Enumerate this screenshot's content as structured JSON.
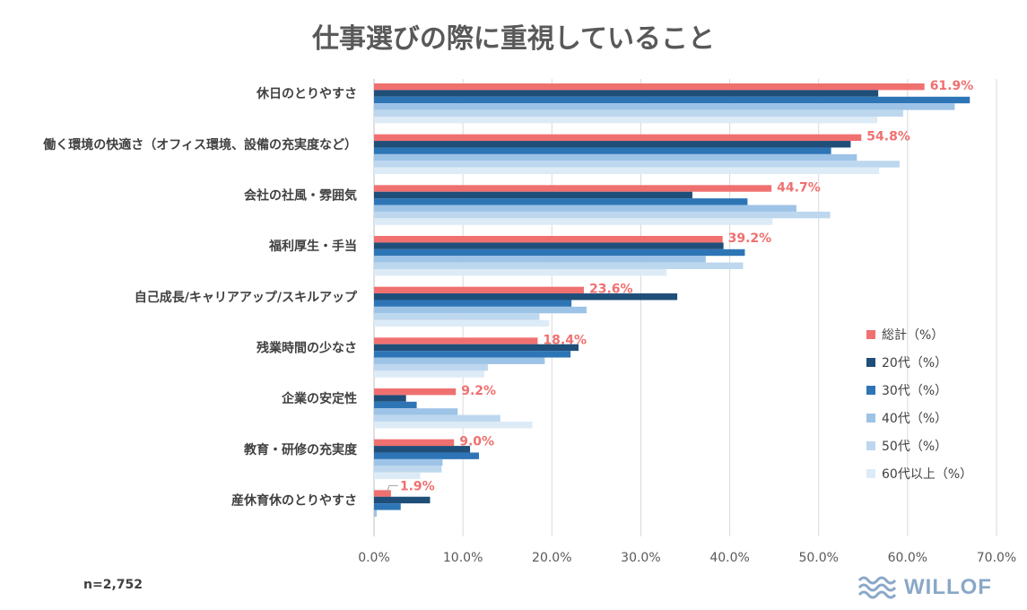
{
  "chart_data": {
    "type": "bar",
    "orientation": "horizontal",
    "title": "仕事選びの際に重視していること",
    "categories": [
      "休日のとりやすさ",
      "働く環境の快適さ（オフィス環境、設備の充実度など）",
      "会社の社風・雰囲気",
      "福利厚生・手当",
      "自己成長/キャリアアップ/スキルアップ",
      "残業時間の少なさ",
      "企業の安定性",
      "教育・研修の充実度",
      "産休育休のとりやすさ"
    ],
    "series": [
      {
        "name": "総計（%）",
        "color": "#f07070",
        "values": [
          61.9,
          54.8,
          44.7,
          39.2,
          23.6,
          18.4,
          9.2,
          9.0,
          1.9
        ]
      },
      {
        "name": "20代（%）",
        "color": "#1f4e79",
        "values": [
          56.7,
          53.6,
          35.8,
          39.3,
          34.1,
          23.0,
          3.6,
          10.8,
          6.3
        ]
      },
      {
        "name": "30代（%）",
        "color": "#2e75b6",
        "values": [
          67.0,
          51.4,
          42.0,
          41.7,
          22.2,
          22.1,
          4.8,
          11.8,
          3.0
        ]
      },
      {
        "name": "40代（%）",
        "color": "#9dc3e6",
        "values": [
          65.3,
          54.3,
          47.5,
          37.3,
          23.9,
          19.2,
          9.4,
          7.7,
          0.3
        ]
      },
      {
        "name": "50代（%）",
        "color": "#bdd7ee",
        "values": [
          59.5,
          59.1,
          51.3,
          41.5,
          18.6,
          12.8,
          14.2,
          7.6,
          0.0
        ]
      },
      {
        "name": "60代以上（%）",
        "color": "#ddebf7",
        "values": [
          56.6,
          56.8,
          44.8,
          32.9,
          19.7,
          12.4,
          17.8,
          5.2,
          0.0
        ]
      }
    ],
    "data_labels": [
      "61.9%",
      "54.8%",
      "44.7%",
      "39.2%",
      "23.6%",
      "18.4%",
      "9.2%",
      "9.0%",
      "1.9%"
    ],
    "xlim": [
      0,
      70
    ],
    "x_ticks": [
      "0.0%",
      "10.0%",
      "20.0%",
      "30.0%",
      "40.0%",
      "50.0%",
      "60.0%",
      "70.0%"
    ],
    "grid": true,
    "legend_position": "right"
  },
  "footnote": "n=2,752",
  "logo": {
    "text": "WILLOF",
    "icon": "wave-icon"
  }
}
